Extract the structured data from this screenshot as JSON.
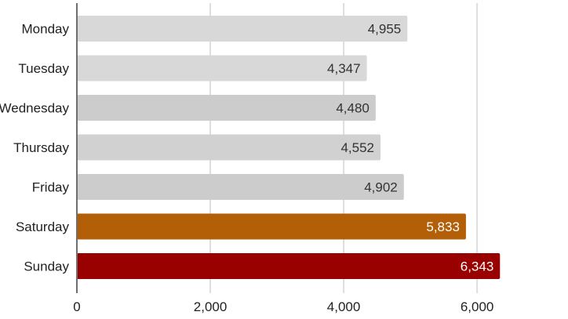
{
  "chart_data": {
    "type": "bar",
    "orientation": "horizontal",
    "categories": [
      "Monday",
      "Tuesday",
      "Wednesday",
      "Thursday",
      "Friday",
      "Saturday",
      "Sunday"
    ],
    "values": [
      4955,
      4347,
      4480,
      4552,
      4902,
      5833,
      6343
    ],
    "value_labels": [
      "4,955",
      "4,347",
      "4,480",
      "4,552",
      "4,902",
      "5,833",
      "6,343"
    ],
    "bar_colors": [
      "#d8d8d8",
      "#d8d8d8",
      "#cccccc",
      "#d1d1d1",
      "#cccccc",
      "#b35f07",
      "#990000"
    ],
    "value_label_colors": [
      "#333333",
      "#333333",
      "#333333",
      "#333333",
      "#333333",
      "#ffffff",
      "#ffffff"
    ],
    "xlim": [
      0,
      6300
    ],
    "xticks": [
      0,
      2000,
      4000,
      6000
    ],
    "xtick_labels": [
      "0",
      "2,000",
      "4,000",
      "6,000"
    ],
    "title": "",
    "xlabel": "",
    "ylabel": "",
    "grid": true,
    "legend": "none"
  }
}
